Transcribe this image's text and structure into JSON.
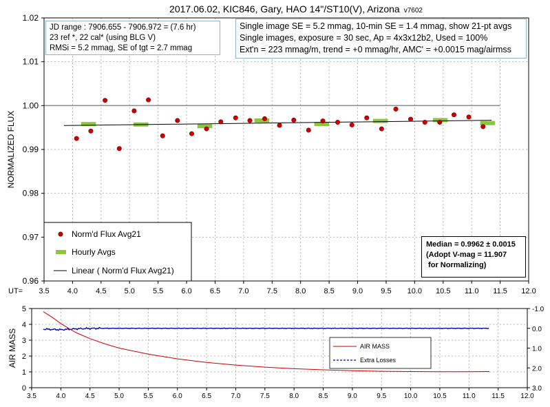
{
  "title": "2017.06.02, KIC846, Gary, HAO 14\"/ST10(V), Arizona",
  "version": "v7602",
  "info_left": [
    "JD range : 7906.655 - 7906.972 = (7.6 hr)",
    "23 ref *, 22 cal* (using BLG V)",
    "RMSi = 5.2 mmag, SE of tgt = 2.7 mmag"
  ],
  "info_right": [
    "Single image SE = 5.2 mmag, 10-min SE = 1.4 mmag, show 21-pt avgs",
    "Single images, exposure = 30 sec, Ap = 4x3x12b2, Used = 100%",
    "Ext'n = 223 mmag/m, trend = +0 mmag/hr, AMC' = +0.0015 mag/airmss"
  ],
  "median_box": [
    "Median = 0.9962 ± 0.0015",
    "(Adopt V-mag = 11.907",
    " for Normalizing)"
  ],
  "colors": {
    "flux_point": "#cc0000",
    "hourly": "#8cc63f",
    "trend": "#000000",
    "airmass": "#cc0000",
    "losses": "#0000aa",
    "grid": "#b4b4b4",
    "ref_line": "#909090"
  },
  "chart_data": [
    {
      "type": "scatter",
      "xlabel": "UT=",
      "ylabel": "NORMALIZED FLUX",
      "xlim": [
        3.5,
        12.0
      ],
      "ylim": [
        0.96,
        1.02
      ],
      "x_ticks": [
        "3.5",
        "4.0",
        "4.5",
        "5.0",
        "5.5",
        "6.0",
        "6.5",
        "7.0",
        "7.5",
        "8.0",
        "8.5",
        "9.0",
        "9.5",
        "10.0",
        "10.5",
        "11.0",
        "11.5",
        "12.0"
      ],
      "y_ticks": [
        "0.96",
        "0.97",
        "0.98",
        "0.99",
        "1.00",
        "1.01",
        "1.02"
      ],
      "grid": true,
      "reference_line": 1.0,
      "legend_position": "bottom-left",
      "series": [
        {
          "name": "Norm'd Flux Avg21",
          "kind": "points",
          "x": [
            4.07,
            4.32,
            4.57,
            4.82,
            5.08,
            5.33,
            5.58,
            5.84,
            6.09,
            6.35,
            6.6,
            6.86,
            7.11,
            7.37,
            7.63,
            7.88,
            8.14,
            8.39,
            8.65,
            8.9,
            9.16,
            9.42,
            9.67,
            9.93,
            10.18,
            10.44,
            10.69,
            10.95,
            11.2
          ],
          "y": [
            0.9925,
            0.9942,
            1.0012,
            0.9902,
            0.9988,
            1.0013,
            0.9931,
            0.9966,
            0.9936,
            0.9947,
            0.9963,
            0.9972,
            0.9966,
            0.997,
            0.9955,
            0.9967,
            0.9944,
            0.9965,
            0.9962,
            0.9956,
            0.9972,
            0.9947,
            0.9992,
            0.9969,
            0.9962,
            0.9962,
            0.9979,
            0.9974,
            0.9952
          ]
        },
        {
          "name": "Hourly Avgs",
          "kind": "segments",
          "x": [
            4.28,
            5.2,
            6.32,
            7.32,
            8.37,
            9.4,
            10.45,
            11.28
          ],
          "y": [
            0.9958,
            0.9957,
            0.9953,
            0.9966,
            0.9958,
            0.9965,
            0.9967,
            0.996
          ],
          "width": 0.26
        },
        {
          "name": "Linear ( Norm'd Flux Avg21)",
          "kind": "line",
          "x": [
            3.85,
            11.35
          ],
          "y": [
            0.99545,
            0.99665
          ]
        }
      ]
    },
    {
      "type": "line",
      "ylabel": "AIR MASS",
      "xlim": [
        3.5,
        12.0
      ],
      "ylim": [
        0,
        5
      ],
      "y2lim": [
        -1.0,
        3.0
      ],
      "x_ticks": [
        "3.5",
        "4.0",
        "4.5",
        "5.0",
        "5.5",
        "6.0",
        "6.5",
        "7.0",
        "7.5",
        "8.0",
        "8.5",
        "9.0",
        "9.5",
        "10.0",
        "10.5",
        "11.0",
        "11.5",
        "12.0"
      ],
      "y_ticks": [
        "0",
        "1",
        "2",
        "3",
        "4",
        "5"
      ],
      "y2_ticks": [
        "-1.0",
        "0.0",
        "1.0",
        "2.0",
        "3.0"
      ],
      "grid": true,
      "legend_position": "bottom-right",
      "series": [
        {
          "name": "AIR MASS",
          "x": [
            3.7,
            3.85,
            4.0,
            4.25,
            4.5,
            4.75,
            5.0,
            5.5,
            6.0,
            6.5,
            7.0,
            7.5,
            8.0,
            8.5,
            9.0,
            9.5,
            10.0,
            10.5,
            11.0,
            11.35
          ],
          "y": [
            4.8,
            4.45,
            4.05,
            3.5,
            3.1,
            2.78,
            2.5,
            2.12,
            1.82,
            1.6,
            1.43,
            1.3,
            1.2,
            1.13,
            1.08,
            1.04,
            1.02,
            1.01,
            1.01,
            1.02
          ]
        },
        {
          "name": "Extra Losses",
          "axis": "right",
          "x": [
            3.7,
            4.0,
            4.3,
            4.6,
            5.0,
            6.0,
            7.0,
            8.0,
            9.0,
            10.0,
            11.0,
            11.35
          ],
          "y": [
            0.04,
            0.07,
            0.02,
            0.0,
            0.0,
            0.0,
            0.0,
            0.0,
            0.0,
            0.0,
            0.0,
            0.0
          ]
        }
      ]
    }
  ]
}
